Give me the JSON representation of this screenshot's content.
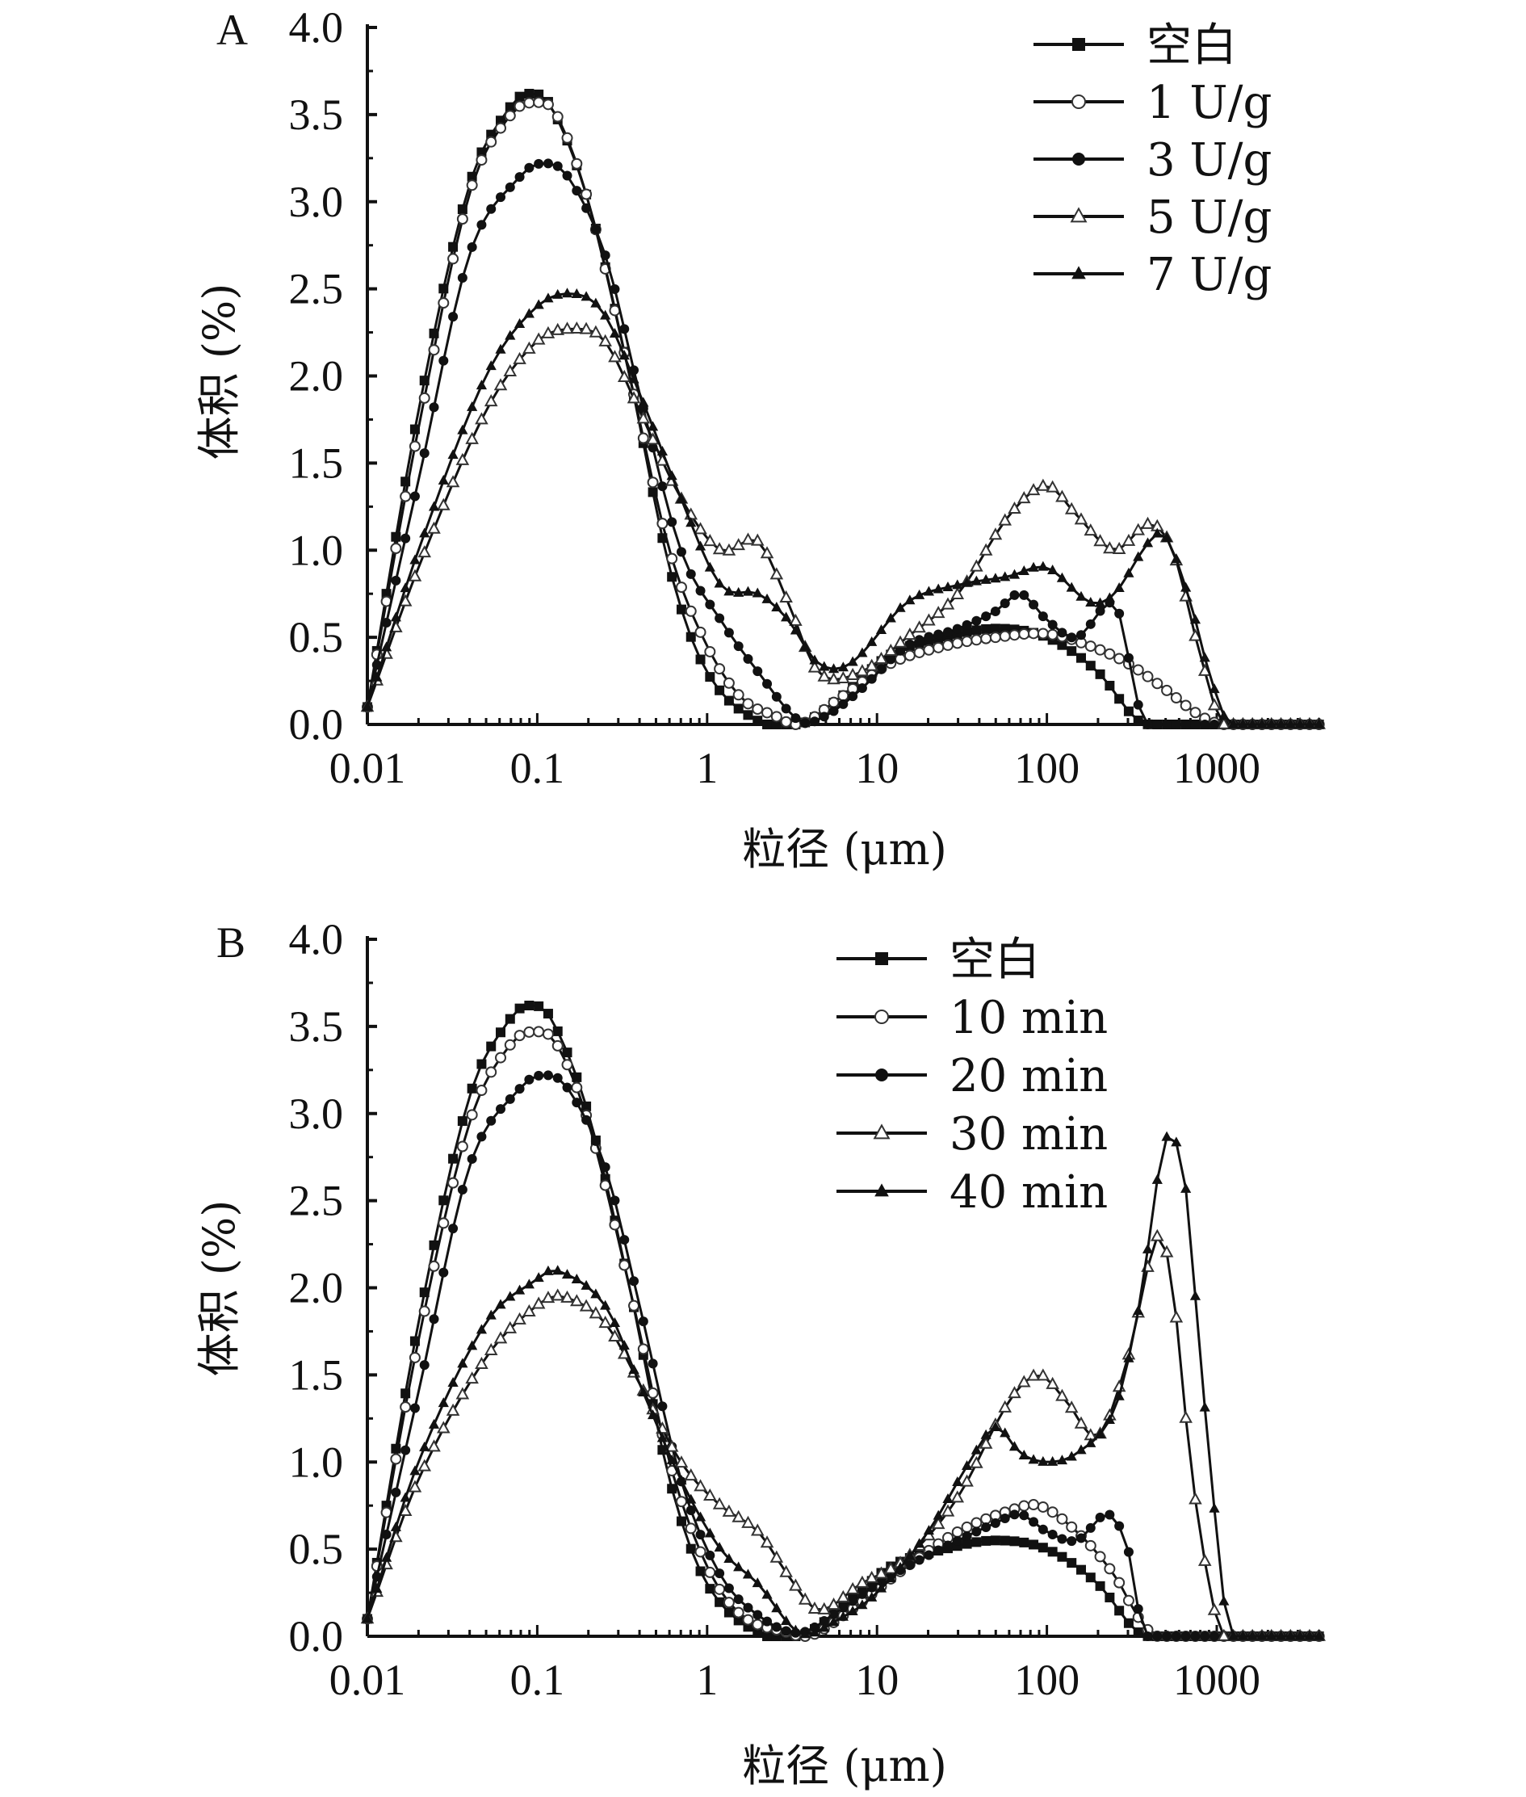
{
  "chart_data": [
    {
      "type": "line",
      "panel_label": "A",
      "xlabel": "粒径 (μm)",
      "ylabel": "体积 (%)",
      "xscale": "log",
      "xlim": [
        0.01,
        4000
      ],
      "ylim": [
        0,
        4.0
      ],
      "x_ticks": [
        "0.01",
        "0.1",
        "1",
        "10",
        "100",
        "1000"
      ],
      "y_ticks": [
        "0.0",
        "0.5",
        "1.0",
        "1.5",
        "2.0",
        "2.5",
        "3.0",
        "3.5",
        "4.0"
      ],
      "grid": false,
      "legend_position": "top-right",
      "series": [
        {
          "name": "空白",
          "marker": "filled-square",
          "points": [
            [
              0.01,
              0.1
            ],
            [
              0.02,
              1.8
            ],
            [
              0.04,
              3.1
            ],
            [
              0.07,
              3.55
            ],
            [
              0.09,
              3.62
            ],
            [
              0.12,
              3.55
            ],
            [
              0.2,
              3.0
            ],
            [
              0.35,
              2.0
            ],
            [
              0.6,
              0.9
            ],
            [
              1.0,
              0.3
            ],
            [
              2.0,
              0.02
            ],
            [
              3.5,
              0.0
            ],
            [
              6,
              0.15
            ],
            [
              12,
              0.4
            ],
            [
              25,
              0.5
            ],
            [
              50,
              0.55
            ],
            [
              100,
              0.5
            ],
            [
              200,
              0.3
            ],
            [
              320,
              0.05
            ],
            [
              400,
              0.0
            ],
            [
              4000,
              0.0
            ]
          ]
        },
        {
          "name": "1 U/g",
          "marker": "open-circle",
          "points": [
            [
              0.01,
              0.1
            ],
            [
              0.02,
              1.7
            ],
            [
              0.04,
              3.05
            ],
            [
              0.07,
              3.5
            ],
            [
              0.1,
              3.57
            ],
            [
              0.13,
              3.5
            ],
            [
              0.2,
              3.0
            ],
            [
              0.35,
              2.0
            ],
            [
              0.6,
              1.0
            ],
            [
              1.0,
              0.45
            ],
            [
              1.6,
              0.15
            ],
            [
              2.5,
              0.05
            ],
            [
              3.5,
              0.0
            ],
            [
              6,
              0.15
            ],
            [
              12,
              0.35
            ],
            [
              25,
              0.45
            ],
            [
              50,
              0.5
            ],
            [
              100,
              0.52
            ],
            [
              180,
              0.45
            ],
            [
              300,
              0.35
            ],
            [
              500,
              0.2
            ],
            [
              800,
              0.05
            ],
            [
              1100,
              0.0
            ],
            [
              4000,
              0.0
            ]
          ]
        },
        {
          "name": "3 U/g",
          "marker": "filled-circle",
          "points": [
            [
              0.01,
              0.1
            ],
            [
              0.02,
              1.4
            ],
            [
              0.04,
              2.7
            ],
            [
              0.08,
              3.15
            ],
            [
              0.11,
              3.22
            ],
            [
              0.15,
              3.15
            ],
            [
              0.25,
              2.7
            ],
            [
              0.4,
              1.9
            ],
            [
              0.7,
              1.0
            ],
            [
              1.2,
              0.6
            ],
            [
              2.0,
              0.3
            ],
            [
              3.5,
              0.02
            ],
            [
              5,
              0.05
            ],
            [
              8,
              0.2
            ],
            [
              15,
              0.45
            ],
            [
              30,
              0.55
            ],
            [
              50,
              0.65
            ],
            [
              70,
              0.75
            ],
            [
              100,
              0.6
            ],
            [
              150,
              0.5
            ],
            [
              250,
              0.7
            ],
            [
              300,
              0.4
            ],
            [
              380,
              0.0
            ],
            [
              4000,
              0.0
            ]
          ]
        },
        {
          "name": "5 U/g",
          "marker": "open-triangle",
          "points": [
            [
              0.01,
              0.1
            ],
            [
              0.02,
              0.9
            ],
            [
              0.05,
              1.8
            ],
            [
              0.1,
              2.2
            ],
            [
              0.17,
              2.27
            ],
            [
              0.25,
              2.2
            ],
            [
              0.4,
              1.8
            ],
            [
              0.7,
              1.3
            ],
            [
              1.2,
              1.0
            ],
            [
              2.0,
              1.05
            ],
            [
              3.0,
              0.7
            ],
            [
              4.5,
              0.3
            ],
            [
              8,
              0.3
            ],
            [
              15,
              0.5
            ],
            [
              30,
              0.75
            ],
            [
              60,
              1.2
            ],
            [
              100,
              1.37
            ],
            [
              150,
              1.2
            ],
            [
              250,
              1.0
            ],
            [
              400,
              1.15
            ],
            [
              550,
              1.0
            ],
            [
              800,
              0.4
            ],
            [
              1100,
              0.0
            ],
            [
              4000,
              0.0
            ]
          ]
        },
        {
          "name": "7 U/g",
          "marker": "filled-triangle",
          "points": [
            [
              0.01,
              0.1
            ],
            [
              0.02,
              1.0
            ],
            [
              0.05,
              2.0
            ],
            [
              0.1,
              2.4
            ],
            [
              0.17,
              2.47
            ],
            [
              0.25,
              2.35
            ],
            [
              0.4,
              1.9
            ],
            [
              0.7,
              1.3
            ],
            [
              1.2,
              0.8
            ],
            [
              2.0,
              0.75
            ],
            [
              3.0,
              0.6
            ],
            [
              4.5,
              0.35
            ],
            [
              7,
              0.35
            ],
            [
              15,
              0.7
            ],
            [
              30,
              0.8
            ],
            [
              60,
              0.85
            ],
            [
              100,
              0.9
            ],
            [
              180,
              0.7
            ],
            [
              250,
              0.75
            ],
            [
              400,
              1.05
            ],
            [
              500,
              1.08
            ],
            [
              700,
              0.7
            ],
            [
              900,
              0.3
            ],
            [
              1200,
              0.0
            ],
            [
              4000,
              0.0
            ]
          ]
        }
      ]
    },
    {
      "type": "line",
      "panel_label": "B",
      "xlabel": "粒径 (μm)",
      "ylabel": "体积 (%)",
      "xscale": "log",
      "xlim": [
        0.01,
        4000
      ],
      "ylim": [
        0,
        4.0
      ],
      "x_ticks": [
        "0.01",
        "0.1",
        "1",
        "10",
        "100",
        "1000"
      ],
      "y_ticks": [
        "0.0",
        "0.5",
        "1.0",
        "1.5",
        "2.0",
        "2.5",
        "3.0",
        "3.5",
        "4.0"
      ],
      "grid": false,
      "legend_position": "top-right",
      "series": [
        {
          "name": "空白",
          "marker": "filled-square",
          "points": [
            [
              0.01,
              0.1
            ],
            [
              0.02,
              1.8
            ],
            [
              0.04,
              3.1
            ],
            [
              0.07,
              3.55
            ],
            [
              0.09,
              3.62
            ],
            [
              0.12,
              3.55
            ],
            [
              0.2,
              3.0
            ],
            [
              0.35,
              2.0
            ],
            [
              0.6,
              0.9
            ],
            [
              1.0,
              0.3
            ],
            [
              2.0,
              0.02
            ],
            [
              3.5,
              0.0
            ],
            [
              6,
              0.15
            ],
            [
              12,
              0.4
            ],
            [
              25,
              0.5
            ],
            [
              50,
              0.55
            ],
            [
              100,
              0.5
            ],
            [
              200,
              0.3
            ],
            [
              320,
              0.05
            ],
            [
              400,
              0.0
            ],
            [
              4000,
              0.0
            ]
          ]
        },
        {
          "name": "10 min",
          "marker": "open-circle",
          "points": [
            [
              0.01,
              0.1
            ],
            [
              0.02,
              1.7
            ],
            [
              0.04,
              2.95
            ],
            [
              0.07,
              3.4
            ],
            [
              0.1,
              3.47
            ],
            [
              0.13,
              3.4
            ],
            [
              0.2,
              2.95
            ],
            [
              0.35,
              2.0
            ],
            [
              0.6,
              1.0
            ],
            [
              1.0,
              0.4
            ],
            [
              1.6,
              0.12
            ],
            [
              3.0,
              0.02
            ],
            [
              4,
              0.0
            ],
            [
              7,
              0.15
            ],
            [
              15,
              0.4
            ],
            [
              30,
              0.6
            ],
            [
              60,
              0.72
            ],
            [
              90,
              0.75
            ],
            [
              150,
              0.6
            ],
            [
              250,
              0.35
            ],
            [
              350,
              0.1
            ],
            [
              450,
              0.0
            ],
            [
              4000,
              0.0
            ]
          ]
        },
        {
          "name": "20 min",
          "marker": "filled-circle",
          "points": [
            [
              0.01,
              0.1
            ],
            [
              0.02,
              1.4
            ],
            [
              0.04,
              2.7
            ],
            [
              0.08,
              3.15
            ],
            [
              0.11,
              3.22
            ],
            [
              0.15,
              3.15
            ],
            [
              0.25,
              2.7
            ],
            [
              0.4,
              1.9
            ],
            [
              0.7,
              0.9
            ],
            [
              1.2,
              0.35
            ],
            [
              2.0,
              0.12
            ],
            [
              3.5,
              0.02
            ],
            [
              6,
              0.15
            ],
            [
              10,
              0.3
            ],
            [
              15,
              0.4
            ],
            [
              30,
              0.55
            ],
            [
              50,
              0.65
            ],
            [
              70,
              0.7
            ],
            [
              100,
              0.6
            ],
            [
              150,
              0.55
            ],
            [
              230,
              0.7
            ],
            [
              300,
              0.5
            ],
            [
              380,
              0.0
            ],
            [
              4000,
              0.0
            ]
          ]
        },
        {
          "name": "30 min",
          "marker": "open-triangle",
          "points": [
            [
              0.01,
              0.1
            ],
            [
              0.02,
              0.9
            ],
            [
              0.05,
              1.6
            ],
            [
              0.1,
              1.9
            ],
            [
              0.14,
              1.95
            ],
            [
              0.25,
              1.8
            ],
            [
              0.4,
              1.45
            ],
            [
              0.7,
              1.0
            ],
            [
              1.2,
              0.75
            ],
            [
              2.0,
              0.6
            ],
            [
              3.0,
              0.35
            ],
            [
              4.5,
              0.15
            ],
            [
              8,
              0.3
            ],
            [
              15,
              0.45
            ],
            [
              30,
              0.8
            ],
            [
              60,
              1.35
            ],
            [
              90,
              1.5
            ],
            [
              130,
              1.35
            ],
            [
              200,
              1.15
            ],
            [
              300,
              1.6
            ],
            [
              450,
              2.3
            ],
            [
              550,
              2.0
            ],
            [
              700,
              1.0
            ],
            [
              900,
              0.3
            ],
            [
              1100,
              0.0
            ],
            [
              4000,
              0.0
            ]
          ]
        },
        {
          "name": "40 min",
          "marker": "filled-triangle",
          "points": [
            [
              0.01,
              0.1
            ],
            [
              0.02,
              1.0
            ],
            [
              0.05,
              1.8
            ],
            [
              0.1,
              2.05
            ],
            [
              0.13,
              2.1
            ],
            [
              0.25,
              1.9
            ],
            [
              0.4,
              1.45
            ],
            [
              0.7,
              0.9
            ],
            [
              1.2,
              0.5
            ],
            [
              2.0,
              0.3
            ],
            [
              3.5,
              0.02
            ],
            [
              6,
              0.1
            ],
            [
              10,
              0.25
            ],
            [
              20,
              0.6
            ],
            [
              35,
              1.0
            ],
            [
              50,
              1.2
            ],
            [
              70,
              1.05
            ],
            [
              100,
              1.0
            ],
            [
              150,
              1.05
            ],
            [
              250,
              1.3
            ],
            [
              350,
              1.9
            ],
            [
              500,
              2.85
            ],
            [
              650,
              2.6
            ],
            [
              800,
              1.6
            ],
            [
              1000,
              0.6
            ],
            [
              1200,
              0.0
            ],
            [
              4000,
              0.0
            ]
          ]
        }
      ]
    }
  ]
}
